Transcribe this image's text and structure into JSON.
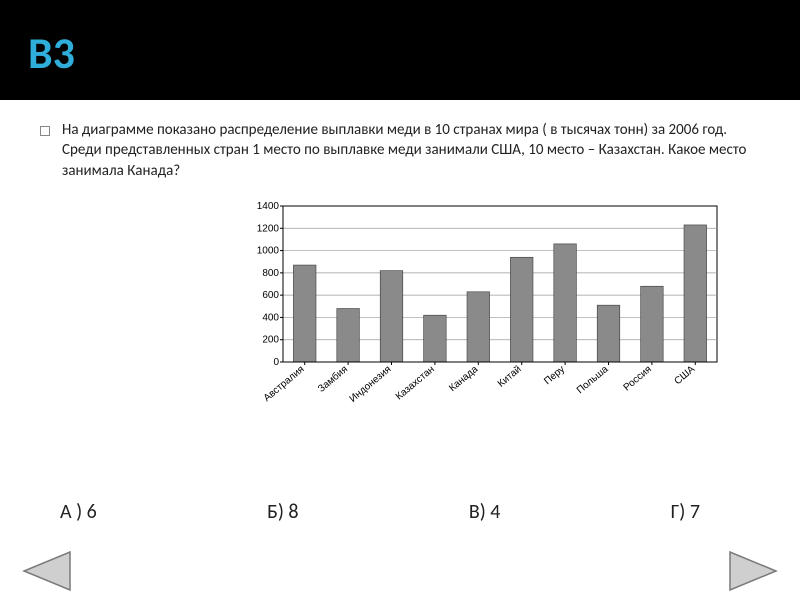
{
  "title": "В3",
  "question": "На диаграмме показано распределение выплавки меди в 10 странах мира ( в тысячах тонн) за 2006 год. Среди представленных стран 1 место по выплавке меди занимали США, 10 место – Казахстан. Какое место занимала Канада?",
  "chart": {
    "type": "bar",
    "ylim": [
      0,
      1400
    ],
    "ytick_step": 200,
    "background_color": "#ffffff",
    "grid_color": "#9a9a9a",
    "axis_color": "#000000",
    "label_fontsize": 10,
    "categories": [
      "Австралия",
      "Замбия",
      "Индонезия",
      "Казахстан",
      "Канада",
      "Китай",
      "Перу",
      "Польша",
      "Россия",
      "США"
    ],
    "values": [
      870,
      480,
      820,
      420,
      630,
      940,
      1060,
      510,
      680,
      1230
    ],
    "bar_color": "#8a8a8a",
    "bar_width": 0.52
  },
  "answers": {
    "a": "А ) 6",
    "b": "Б) 8",
    "v": "В)  4",
    "g": "Г)  7"
  },
  "colors": {
    "title_bg": "#000000",
    "title_fg": "#2faedb",
    "nav_fill": "#cfcfcf",
    "nav_stroke": "#7a7a7a"
  }
}
